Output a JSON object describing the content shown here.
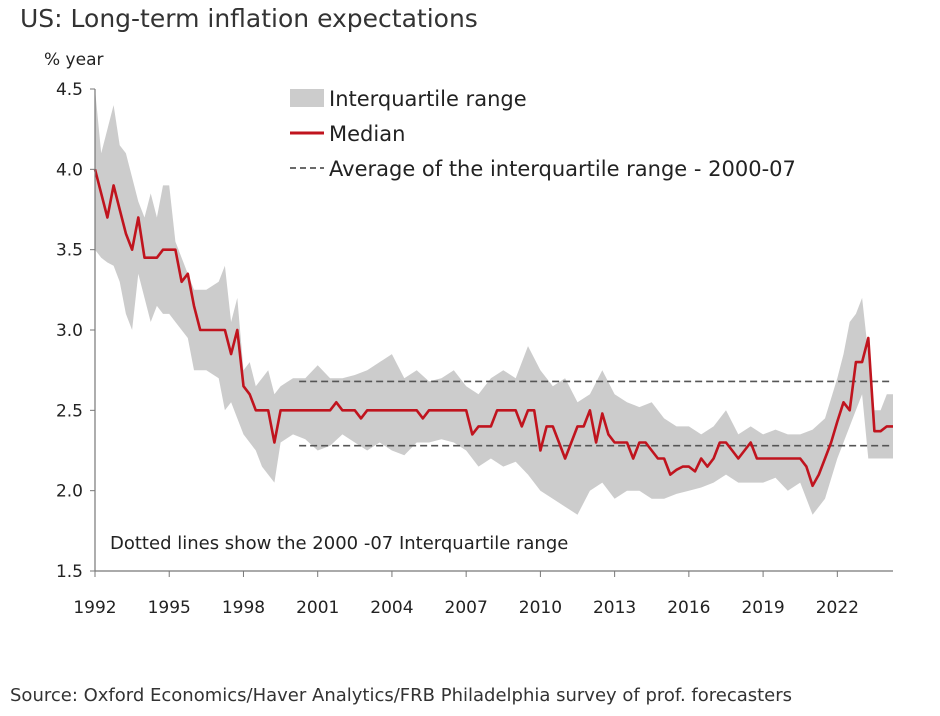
{
  "chart_data": {
    "type": "line",
    "title": "US: Long-term inflation expectations",
    "ylabel": "% year",
    "xlabel": "",
    "ylim": [
      1.5,
      4.5
    ],
    "xlim": [
      1992,
      2024.25
    ],
    "y_ticks": [
      "1.5",
      "2.0",
      "2.5",
      "3.0",
      "3.5",
      "4.0",
      "4.5"
    ],
    "x_ticks": [
      "1992",
      "1995",
      "1998",
      "2001",
      "2004",
      "2007",
      "2010",
      "2013",
      "2016",
      "2019",
      "2022"
    ],
    "legend": {
      "position": "top-center",
      "entries": [
        "Interquartile range",
        "Median",
        "Average of the interquartile range - 2000-07"
      ]
    },
    "annotation": "Dotted lines show the 2000 -07 Interquartile range",
    "source": "Source: Oxford Economics/Haver Analytics/FRB Philadelphia survey of prof. forecasters",
    "colors": {
      "median": "#c0141e",
      "band": "#cccccc",
      "dashed": "#555555",
      "axis": "#777777"
    },
    "reference_lines": [
      {
        "name": "upper-avg",
        "y": 2.68,
        "x_start": 2000.25,
        "x_end": 2024.25
      },
      {
        "name": "lower-avg",
        "y": 2.28,
        "x_start": 2000.25,
        "x_end": 2024.25
      }
    ],
    "median": {
      "x": [
        1992,
        1992.25,
        1992.5,
        1992.75,
        1993,
        1993.25,
        1993.5,
        1993.75,
        1994,
        1994.25,
        1994.5,
        1994.75,
        1995,
        1995.25,
        1995.5,
        1995.75,
        1996,
        1996.25,
        1996.5,
        1996.75,
        1997,
        1997.25,
        1997.5,
        1997.75,
        1998,
        1998.25,
        1998.5,
        1998.75,
        1999,
        1999.25,
        1999.5,
        1999.75,
        2000,
        2000.5,
        2001,
        2001.25,
        2001.5,
        2001.75,
        2002,
        2002.25,
        2002.5,
        2002.75,
        2003,
        2003.5,
        2004,
        2004.5,
        2005,
        2005.25,
        2005.5,
        2006,
        2006.5,
        2007,
        2007.25,
        2007.5,
        2008,
        2008.25,
        2008.5,
        2008.75,
        2009,
        2009.25,
        2009.5,
        2009.75,
        2010,
        2010.25,
        2010.5,
        2010.75,
        2011,
        2011.25,
        2011.5,
        2011.75,
        2012,
        2012.25,
        2012.5,
        2012.75,
        2013,
        2013.25,
        2013.5,
        2013.75,
        2014,
        2014.25,
        2014.5,
        2014.75,
        2015,
        2015.25,
        2015.5,
        2015.75,
        2016,
        2016.25,
        2016.5,
        2016.75,
        2017,
        2017.25,
        2017.5,
        2017.75,
        2018,
        2018.25,
        2018.5,
        2018.75,
        2019,
        2019.25,
        2019.5,
        2019.75,
        2020,
        2020.25,
        2020.5,
        2020.75,
        2021,
        2021.25,
        2021.5,
        2021.75,
        2022,
        2022.25,
        2022.5,
        2022.75,
        2023,
        2023.25,
        2023.5,
        2023.75,
        2024,
        2024.25
      ],
      "values": [
        4.0,
        3.85,
        3.7,
        3.9,
        3.75,
        3.6,
        3.5,
        3.7,
        3.45,
        3.45,
        3.45,
        3.5,
        3.5,
        3.5,
        3.3,
        3.35,
        3.15,
        3.0,
        3.0,
        3.0,
        3.0,
        3.0,
        2.85,
        3.0,
        2.65,
        2.6,
        2.5,
        2.5,
        2.5,
        2.3,
        2.5,
        2.5,
        2.5,
        2.5,
        2.5,
        2.5,
        2.5,
        2.55,
        2.5,
        2.5,
        2.5,
        2.45,
        2.5,
        2.5,
        2.5,
        2.5,
        2.5,
        2.45,
        2.5,
        2.5,
        2.5,
        2.5,
        2.35,
        2.4,
        2.4,
        2.5,
        2.5,
        2.5,
        2.5,
        2.4,
        2.5,
        2.5,
        2.25,
        2.4,
        2.4,
        2.3,
        2.2,
        2.3,
        2.4,
        2.4,
        2.5,
        2.3,
        2.48,
        2.35,
        2.3,
        2.3,
        2.3,
        2.2,
        2.3,
        2.3,
        2.25,
        2.2,
        2.2,
        2.1,
        2.13,
        2.15,
        2.15,
        2.12,
        2.2,
        2.15,
        2.2,
        2.3,
        2.3,
        2.25,
        2.2,
        2.25,
        2.3,
        2.2,
        2.2,
        2.2,
        2.2,
        2.2,
        2.2,
        2.2,
        2.2,
        2.15,
        2.03,
        2.1,
        2.2,
        2.3,
        2.43,
        2.55,
        2.5,
        2.8,
        2.8,
        2.95,
        2.37,
        2.37,
        2.4,
        2.4
      ]
    },
    "iqr_upper": {
      "x": [
        1992,
        1992.25,
        1992.5,
        1992.75,
        1993,
        1993.25,
        1993.5,
        1993.75,
        1994,
        1994.25,
        1994.5,
        1994.75,
        1995,
        1995.25,
        1995.5,
        1995.75,
        1996,
        1996.5,
        1997,
        1997.25,
        1997.5,
        1997.75,
        1998,
        1998.25,
        1998.5,
        1998.75,
        1999,
        1999.25,
        1999.5,
        2000,
        2000.5,
        2001,
        2001.5,
        2002,
        2002.5,
        2003,
        2003.5,
        2004,
        2004.5,
        2005,
        2005.5,
        2006,
        2006.5,
        2007,
        2007.5,
        2008,
        2008.5,
        2009,
        2009.5,
        2010,
        2010.5,
        2011,
        2011.5,
        2012,
        2012.5,
        2013,
        2013.5,
        2014,
        2014.5,
        2015,
        2015.5,
        2016,
        2016.5,
        2017,
        2017.5,
        2018,
        2018.5,
        2019,
        2019.5,
        2020,
        2020.5,
        2021,
        2021.5,
        2022,
        2022.25,
        2022.5,
        2022.75,
        2023,
        2023.25,
        2023.5,
        2023.75,
        2024,
        2024.25
      ],
      "values": [
        4.5,
        4.1,
        4.25,
        4.4,
        4.15,
        4.1,
        3.95,
        3.8,
        3.7,
        3.85,
        3.7,
        3.9,
        3.9,
        3.55,
        3.45,
        3.35,
        3.25,
        3.25,
        3.3,
        3.4,
        3.05,
        3.2,
        2.75,
        2.8,
        2.65,
        2.7,
        2.75,
        2.6,
        2.65,
        2.7,
        2.7,
        2.78,
        2.7,
        2.7,
        2.72,
        2.75,
        2.8,
        2.85,
        2.7,
        2.75,
        2.68,
        2.7,
        2.75,
        2.65,
        2.6,
        2.7,
        2.75,
        2.7,
        2.9,
        2.75,
        2.65,
        2.7,
        2.55,
        2.6,
        2.75,
        2.6,
        2.55,
        2.52,
        2.55,
        2.45,
        2.4,
        2.4,
        2.35,
        2.4,
        2.5,
        2.35,
        2.4,
        2.35,
        2.38,
        2.35,
        2.35,
        2.38,
        2.45,
        2.7,
        2.85,
        3.05,
        3.1,
        3.2,
        2.85,
        2.5,
        2.5,
        2.6,
        2.6
      ]
    },
    "iqr_lower": {
      "x": [
        1992,
        1992.25,
        1992.5,
        1992.75,
        1993,
        1993.25,
        1993.5,
        1993.75,
        1994,
        1994.25,
        1994.5,
        1994.75,
        1995,
        1995.25,
        1995.5,
        1995.75,
        1996,
        1996.5,
        1997,
        1997.25,
        1997.5,
        1997.75,
        1998,
        1998.25,
        1998.5,
        1998.75,
        1999,
        1999.25,
        1999.5,
        2000,
        2000.5,
        2001,
        2001.5,
        2002,
        2002.5,
        2003,
        2003.5,
        2004,
        2004.5,
        2005,
        2005.5,
        2006,
        2006.5,
        2007,
        2007.5,
        2008,
        2008.5,
        2009,
        2009.5,
        2010,
        2010.5,
        2011,
        2011.5,
        2012,
        2012.5,
        2013,
        2013.5,
        2014,
        2014.5,
        2015,
        2015.5,
        2016,
        2016.5,
        2017,
        2017.5,
        2018,
        2018.5,
        2019,
        2019.5,
        2020,
        2020.5,
        2021,
        2021.5,
        2022,
        2022.25,
        2022.5,
        2022.75,
        2023,
        2023.25,
        2023.5,
        2023.75,
        2024,
        2024.25
      ],
      "values": [
        3.5,
        3.45,
        3.42,
        3.4,
        3.3,
        3.1,
        3.0,
        3.35,
        3.2,
        3.05,
        3.15,
        3.1,
        3.1,
        3.05,
        3.0,
        2.95,
        2.75,
        2.75,
        2.7,
        2.5,
        2.55,
        2.45,
        2.35,
        2.3,
        2.25,
        2.15,
        2.1,
        2.05,
        2.3,
        2.35,
        2.32,
        2.25,
        2.28,
        2.35,
        2.3,
        2.25,
        2.3,
        2.25,
        2.22,
        2.3,
        2.3,
        2.32,
        2.3,
        2.25,
        2.15,
        2.2,
        2.15,
        2.18,
        2.1,
        2.0,
        1.95,
        1.9,
        1.85,
        2.0,
        2.05,
        1.95,
        2.0,
        2.0,
        1.95,
        1.95,
        1.98,
        2.0,
        2.02,
        2.05,
        2.1,
        2.05,
        2.05,
        2.05,
        2.08,
        2.0,
        2.05,
        1.85,
        1.95,
        2.2,
        2.3,
        2.4,
        2.5,
        2.6,
        2.2,
        2.2,
        2.2,
        2.2,
        2.2
      ]
    }
  }
}
